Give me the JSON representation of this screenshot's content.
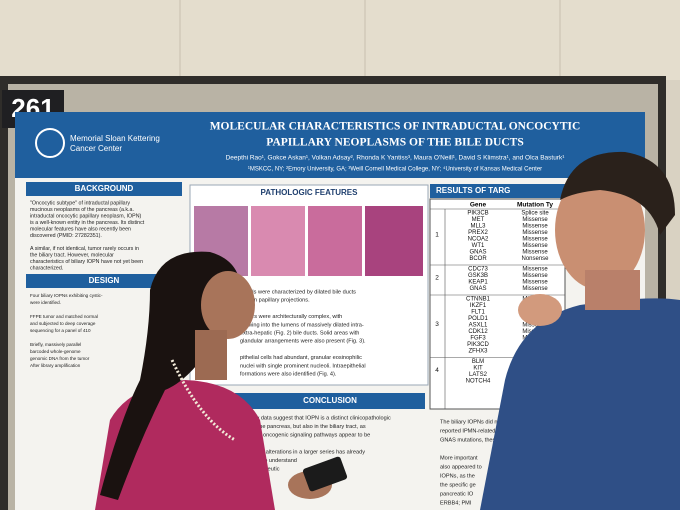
{
  "board_number": "261",
  "logo": {
    "line1": "Memorial Sloan Kettering",
    "line2": "Cancer Center"
  },
  "poster": {
    "title": [
      "MOLECULAR CHARACTERISTICS OF INTRADUCTAL ONCOCYTIC",
      "PAPILLARY NEOPLASMS OF THE BILE DUCTS"
    ],
    "authors": "Deepthi Rao¹, Gokce Askan¹, Volkan Adsay², Rhonda K Yantiss³, Maura O'Neill¹, David S Klimstra¹, and Olca Basturk¹",
    "affiliations": "¹MSKCC, NY; ²Emory University, GA; ³Weill Cornell Medical College, NY; ⁴University of Kansas Medical Center",
    "background": {
      "heading": "BACKGROUND",
      "lines": [
        "\"Oncocytic subtype\" of intraductal papillary",
        "mucinous neoplasms of the pancreas (a.k.a.",
        "intraductal oncocytic papillary neoplasm, IOPN)",
        "is a well-known entity in the pancreas. Its distinct",
        "molecular features have also recently been",
        "discovered (PMID: 27282351).",
        "",
        "A similar, if not identical, tumor rarely occurs in",
        "the biliary tract. However, molecular",
        "characteristics of biliary IOPN have not yet been",
        "characterized."
      ]
    },
    "design": {
      "heading": "DESIGN",
      "lines": [
        "Four biliary IOPNs exhibiting cystic-",
        "were identified.",
        "",
        "FFPE tumor and matched normal",
        "and subjected to deep coverage",
        "sequencing for a panel of 410",
        "",
        "Briefly, massively parallel",
        "barcoded whole-genome",
        "genomic DNA from the tumor",
        "After library amplification"
      ]
    },
    "pathology": {
      "heading": "PATHOLOGIC FEATURES",
      "lines": [
        "IOPNs were characterized by dilated bile ducts",
        "-brown papillary projections.",
        "",
        "tumors were architecturally complex, with",
        "growing into the lumens of massively dilated intra-",
        "extra-hepatic (Fig. 2) bile ducts. Solid areas with",
        "glandular arrangements were also present (Fig. 3).",
        "",
        "pithelial cells had abundant, granular eosinophilic",
        "nuclei with single prominent nucleoli. Intraepithelial",
        "formations were also identified (Fig. 4)."
      ]
    },
    "conclusion": {
      "heading": "CONCLUSION",
      "lines": [
        "liminary data suggest that IOPN is a distinct clinicopathologic",
        "only in the pancreas, but also in the biliary tract, as",
        "common oncogenic signaling pathways appear to be",
        "",
        "molecular alterations in a larger series has already",
        "changes to understand",
        "new therapeutic",
        "rations."
      ]
    },
    "results": {
      "heading": "RESULTS OF TARG",
      "col_gene": "Gene",
      "col_type": "Mutation Ty",
      "groups": [
        {
          "case": "1",
          "genes": [
            "PIK3CB",
            "MET",
            "MLL3",
            "PREX2",
            "NCOA2",
            "WT1",
            "GNAS",
            "BCOR"
          ],
          "types": [
            "Splice site",
            "Missense",
            "Missense",
            "Missense",
            "Missense",
            "Missense",
            "Missense",
            "Nonsense"
          ]
        },
        {
          "case": "2",
          "genes": [
            "CDC73",
            "GSK3B",
            "KEAP1",
            "GNAS"
          ],
          "types": [
            "Missense",
            "Missense",
            "Missense",
            "Missense"
          ]
        },
        {
          "case": "3",
          "genes": [
            "CTNNB1",
            "IKZF1",
            "FLT1",
            "POLD1",
            "ASXL1",
            "CDK12",
            "FGF3",
            "PIK3CD",
            "ZFHX3"
          ],
          "types": [
            "Missense",
            "Missense",
            "Missense",
            "Missense",
            "Missense",
            "Missense",
            "Missense",
            "Missense",
            "Deletion"
          ]
        },
        {
          "case": "4",
          "genes": [
            "BLM",
            "KIT",
            "LATS2",
            "NOTCH4"
          ],
          "types": [
            "Missense",
            "Missense",
            "Missense",
            "Missense"
          ]
        }
      ],
      "notes": [
        "The biliary IOPNs did not ha",
        "reported IPMN-related o",
        "GNAS mutations, these",
        "",
        "More important",
        "also appeared to",
        "IOPNs, as the",
        "the specific ge",
        "pancreatic IO",
        "ERBB4; PMI"
      ]
    }
  }
}
